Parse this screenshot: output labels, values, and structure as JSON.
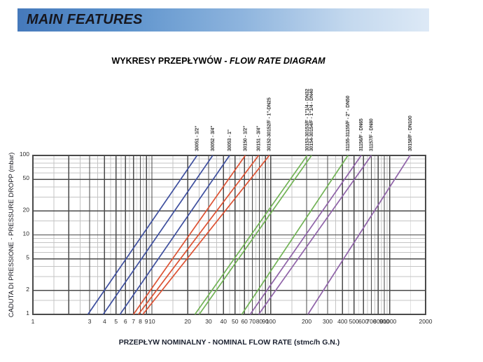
{
  "header": {
    "title": "MAIN FEATURES"
  },
  "diagram_title": {
    "pl": "WYKRESY PRZEPŁYWÓW - ",
    "en": "FLOW RATE DIAGRAM"
  },
  "chart_data": {
    "type": "line",
    "title": "WYKRESY PRZEPŁYWÓW - FLOW RATE DIAGRAM",
    "xlabel": "PRZEPŁYW NOMINALNY - NOMINAL FLOW RATE (stmc/h G.N.)",
    "ylabel": "CADUTA DI PRESSIONE - PRESSURE DROPP (mbar)",
    "x_axis": {
      "scale": "log",
      "min": 1,
      "max": 2000,
      "tick_labels": [
        1,
        3,
        4,
        5,
        6,
        7,
        8,
        9,
        10,
        20,
        30,
        40,
        50,
        60,
        70,
        80,
        90,
        100,
        200,
        300,
        400,
        500,
        600,
        700,
        800,
        900,
        1000,
        2000
      ],
      "major_lines": [
        1,
        2,
        3,
        4,
        5,
        6,
        7,
        8,
        9,
        10,
        20,
        30,
        40,
        50,
        60,
        70,
        80,
        90,
        100,
        200,
        300,
        400,
        500,
        600,
        700,
        800,
        900,
        1000,
        2000
      ],
      "minor_lines": [
        1.5,
        2.5,
        3.5,
        4.5,
        5.5,
        6.5,
        7.5,
        8.5,
        9.5,
        15,
        25,
        35,
        45,
        55,
        65,
        75,
        85,
        95,
        150,
        250,
        350,
        450,
        550,
        650,
        750,
        850,
        950,
        1500
      ]
    },
    "y_axis": {
      "scale": "log",
      "min": 1,
      "max": 100,
      "tick_labels": [
        1,
        2,
        5,
        10,
        20,
        50,
        100
      ],
      "major_lines": [
        1,
        2,
        5,
        10,
        20,
        50,
        100
      ],
      "minor_lines": [
        1.5,
        3,
        4,
        6,
        7,
        8,
        9,
        15,
        30,
        40,
        60,
        70,
        80,
        90
      ]
    },
    "grid": true,
    "legend_position": "rotated-labels-above-lines",
    "colors": {
      "group1": "#3e4f9e",
      "group2": "#dc5233",
      "group3": "#72b356",
      "group4": "#8f63a8"
    },
    "series": [
      {
        "label": "30051 - 1/2\"",
        "color": "#3e4f9e",
        "points": [
          [
            2.9,
            1
          ],
          [
            24,
            100
          ]
        ]
      },
      {
        "label": "30052 - 3/4\"",
        "color": "#3e4f9e",
        "points": [
          [
            3.9,
            1
          ],
          [
            32.5,
            100
          ]
        ]
      },
      {
        "label": "30053 - 1\"",
        "color": "#3e4f9e",
        "points": [
          [
            5.4,
            1
          ],
          [
            45,
            100
          ]
        ]
      },
      {
        "label": "30150 - 1/2\"",
        "color": "#dc5233",
        "points": [
          [
            7.0,
            1
          ],
          [
            61,
            100
          ]
        ]
      },
      {
        "label": "30151 - 3/4\"",
        "color": "#dc5233",
        "points": [
          [
            7.7,
            1
          ],
          [
            79,
            100
          ]
        ]
      },
      {
        "label": "30152-30152/F - 1\"-DN25",
        "color": "#dc5233",
        "points": [
          [
            8.4,
            1
          ],
          [
            97,
            100
          ]
        ]
      },
      {
        "label": "30153-30153/F - 1\"1/4 - DN32",
        "color": "#72b356",
        "points": [
          [
            23,
            1
          ],
          [
            202,
            100
          ]
        ]
      },
      {
        "label": "30154-30154/F - 1\"1/4 - DN40",
        "color": "#72b356",
        "points": [
          [
            25,
            1
          ],
          [
            220,
            100
          ]
        ]
      },
      {
        "label": "31155-31155/F - 2\" - DN50",
        "color": "#72b356",
        "points": [
          [
            57,
            1
          ],
          [
            445,
            100
          ]
        ]
      },
      {
        "label": "31156/F - DN65",
        "color": "#8f63a8",
        "points": [
          [
            67,
            1
          ],
          [
            575,
            100
          ]
        ]
      },
      {
        "label": "31157/F - DN80",
        "color": "#8f63a8",
        "points": [
          [
            79,
            1
          ],
          [
            700,
            100
          ]
        ]
      },
      {
        "label": "30158/F - DN100",
        "color": "#8f63a8",
        "points": [
          [
            205,
            1
          ],
          [
            1480,
            100
          ]
        ]
      }
    ]
  }
}
